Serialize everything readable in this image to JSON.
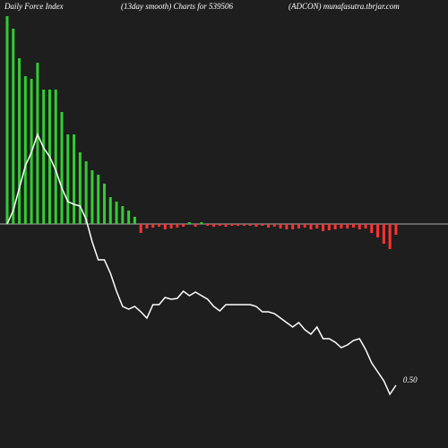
{
  "chart_data": {
    "type": "bar",
    "title": "Daily Force  Index",
    "subtitle": "(13day smooth) Charts for 539506",
    "source": "(ADCON) munafasutra.tbrjar.com",
    "end_label": "0.50",
    "ylim": [
      -250,
      250
    ],
    "positive_color": "#33cc33",
    "negative_color": "#ff3333",
    "line_color": "#ffffff",
    "zero_line_color": "#aaaaaa",
    "values": [
      232,
      218,
      185,
      165,
      162,
      180,
      150,
      150,
      150,
      125,
      100,
      100,
      80,
      70,
      60,
      55,
      45,
      30,
      25,
      20,
      15,
      8,
      -10,
      -5,
      -4,
      -3,
      -6,
      -5,
      -4,
      -3,
      2,
      -3,
      2,
      -2,
      -3,
      -2,
      -3,
      -2,
      -2,
      -2,
      -2,
      -3,
      -2,
      -4,
      -3,
      -5,
      -6,
      -6,
      -5,
      -4,
      -6,
      -5,
      -8,
      -7,
      -6,
      -5,
      -5,
      -4,
      -6,
      -5,
      -10,
      -15,
      -22,
      -28,
      -12
    ],
    "line": [
      0,
      15,
      40,
      65,
      80,
      100,
      85,
      75,
      60,
      40,
      25,
      22,
      20,
      5,
      -20,
      -40,
      -40,
      -55,
      -75,
      -92,
      -95,
      -92,
      -98,
      -105,
      -90,
      -90,
      -82,
      -84,
      -83,
      -75,
      -80,
      -76,
      -80,
      -84,
      -92,
      -97,
      -90,
      -90,
      -90,
      -90,
      -90,
      -92,
      -98,
      -98,
      -100,
      -105,
      -110,
      -115,
      -110,
      -118,
      -123,
      -115,
      -128,
      -128,
      -132,
      -138,
      -135,
      -130,
      -128,
      -140,
      -155,
      -165,
      -175,
      -190,
      -180
    ]
  }
}
